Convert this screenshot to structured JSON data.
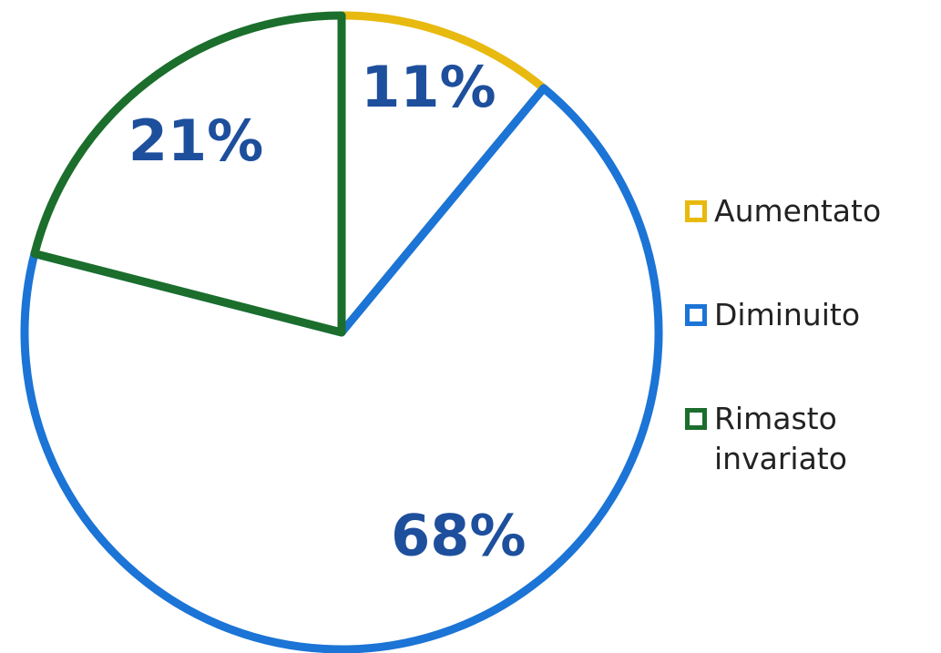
{
  "chart_data": {
    "type": "pie",
    "categories": [
      "Aumentato",
      "Diminuito",
      "Rimasto invariato"
    ],
    "values": [
      11,
      68,
      21
    ],
    "value_labels": [
      "11%",
      "68%",
      "21%"
    ],
    "colors": [
      "#e8b90f",
      "#1b74d6",
      "#1b6e2c"
    ],
    "legend": "right"
  }
}
